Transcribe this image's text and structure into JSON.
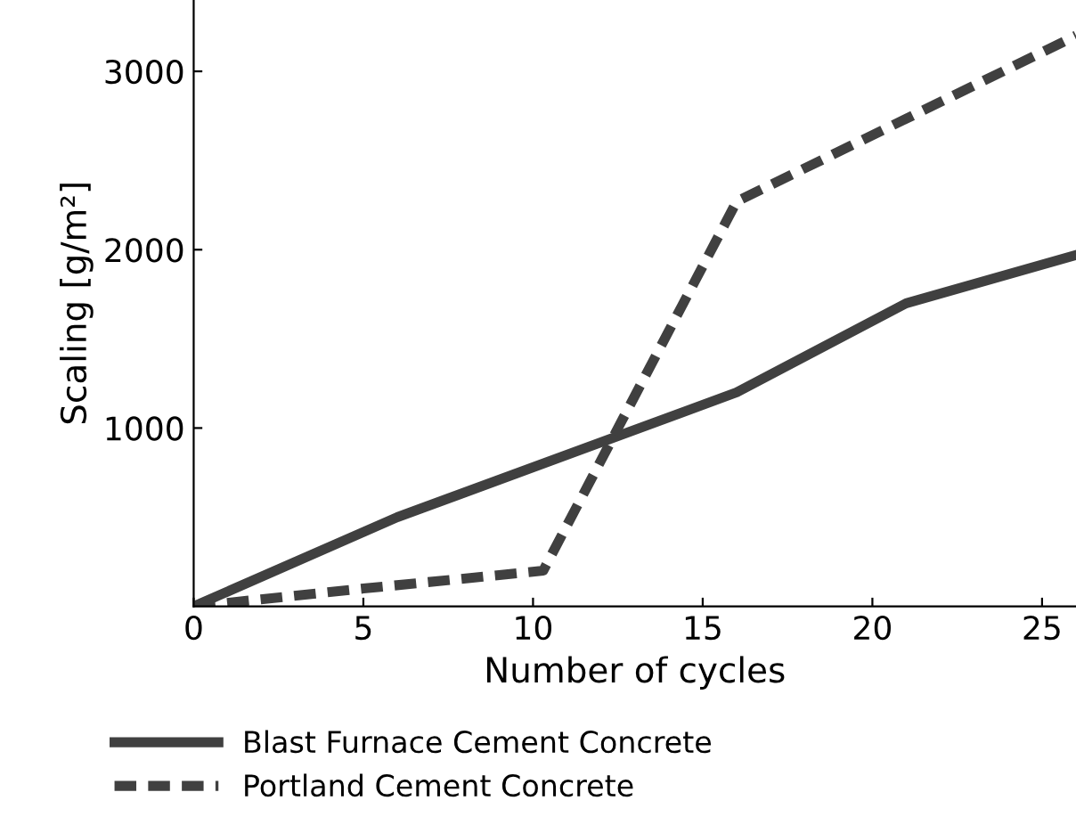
{
  "chart_data": {
    "type": "line",
    "xlabel": "Number of cycles",
    "ylabel": "Scaling [g/m²]",
    "xlim": [
      0,
      26
    ],
    "ylim": [
      0,
      3400
    ],
    "xticks": [
      0,
      5,
      10,
      15,
      20,
      25
    ],
    "yticks": [
      1000,
      2000,
      3000
    ],
    "grid": false,
    "legend": "bottom",
    "marker": "none",
    "series": [
      {
        "name": "Blast Furnace Cement Concrete",
        "color": "#404040",
        "line_style": "solid",
        "x": [
          0,
          6,
          16,
          21,
          26
        ],
        "values": [
          0,
          500,
          1200,
          1700,
          1970
        ]
      },
      {
        "name": "Portland Cement Concrete",
        "color": "#404040",
        "line_style": "dashed",
        "x": [
          0,
          5,
          10.3,
          16,
          26
        ],
        "values": [
          0,
          100,
          200,
          2270,
          3200
        ]
      }
    ]
  }
}
